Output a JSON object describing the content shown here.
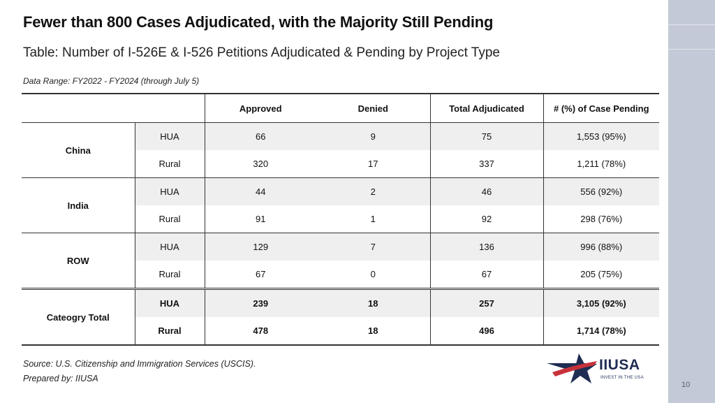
{
  "slide": {
    "title": "Fewer than 800 Cases Adjudicated, with the Majority Still Pending",
    "subtitle": "Table: Number of I-526E & I-526 Petitions Adjudicated & Pending by Project Type",
    "data_range": "Data Range: FY2022 - FY2024 (through July 5)",
    "page_number": "10"
  },
  "table": {
    "headers": [
      "Approved",
      "Denied",
      "Total Adjudicated",
      "# (%) of Case Pending"
    ],
    "groups": [
      {
        "region": "China",
        "rows": [
          {
            "type": "HUA",
            "approved": "66",
            "denied": "9",
            "total": "75",
            "pending": "1,553 (95%)"
          },
          {
            "type": "Rural",
            "approved": "320",
            "denied": "17",
            "total": "337",
            "pending": "1,211 (78%)"
          }
        ]
      },
      {
        "region": "India",
        "rows": [
          {
            "type": "HUA",
            "approved": "44",
            "denied": "2",
            "total": "46",
            "pending": "556 (92%)"
          },
          {
            "type": "Rural",
            "approved": "91",
            "denied": "1",
            "total": "92",
            "pending": "298 (76%)"
          }
        ]
      },
      {
        "region": "ROW",
        "rows": [
          {
            "type": "HUA",
            "approved": "129",
            "denied": "7",
            "total": "136",
            "pending": "996 (88%)"
          },
          {
            "type": "Rural",
            "approved": "67",
            "denied": "0",
            "total": "67",
            "pending": "205 (75%)"
          }
        ]
      },
      {
        "region": "Cateogry Total",
        "rows": [
          {
            "type": "HUA",
            "approved": "239",
            "denied": "18",
            "total": "257",
            "pending": "3,105 (92%)"
          },
          {
            "type": "Rural",
            "approved": "478",
            "denied": "18",
            "total": "496",
            "pending": "1,714 (78%)"
          }
        ]
      }
    ]
  },
  "footer": {
    "source": "Source: U.S. Citizenship and Immigration Services (USCIS).",
    "prepared_by": "Prepared by: IIUSA"
  },
  "logo": {
    "name": "IIUSA",
    "tagline": "INVEST IN THE USA",
    "colors": {
      "navy": "#1f2d52",
      "red": "#c8323a"
    }
  }
}
